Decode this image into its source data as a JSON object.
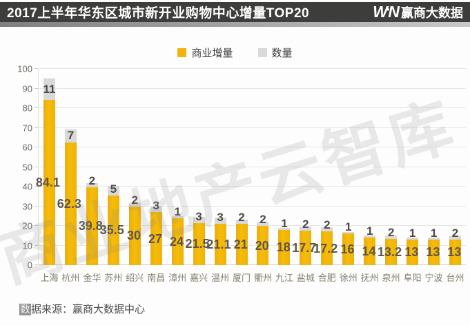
{
  "header": {
    "title": "2017上半年华东区城市新开业购物中心增量TOP20",
    "logo": {
      "mark_w": "W",
      "mark_dot": "•",
      "mark_n": "N",
      "name": "赢商大数据"
    }
  },
  "watermark": "商业地产云智库",
  "source_note": {
    "highlight": "数",
    "rest": "据来源：赢商大数据中心"
  },
  "chart_data": {
    "type": "bar",
    "stacked": true,
    "title": "2017上半年华东区城市新开业购物中心增量TOP20",
    "categories": [
      "上海",
      "杭州",
      "金华",
      "苏州",
      "绍兴",
      "南昌",
      "漳州",
      "嘉兴",
      "温州",
      "厦门",
      "衢州",
      "九江",
      "盐城",
      "合肥",
      "徐州",
      "抚州",
      "泉州",
      "阜阳",
      "宁波",
      "台州"
    ],
    "series": [
      {
        "name": "商业增量",
        "color": "#F2B30F",
        "values": [
          84.1,
          62.3,
          39.8,
          35.5,
          30,
          27,
          24,
          21.5,
          21.1,
          21,
          20,
          18,
          17.7,
          17.2,
          16,
          14,
          13.2,
          13,
          13,
          13
        ]
      },
      {
        "name": "数量",
        "color": "#D9D9D9",
        "values": [
          11,
          7,
          2,
          5,
          2,
          3,
          1,
          3,
          3,
          2,
          2,
          1,
          2,
          2,
          1,
          1,
          2,
          1,
          1,
          2
        ]
      }
    ],
    "xlabel": "",
    "ylabel": "",
    "ylim": [
      0,
      100
    ],
    "ytick_step": 10,
    "grid": true,
    "legend_position": "top"
  }
}
